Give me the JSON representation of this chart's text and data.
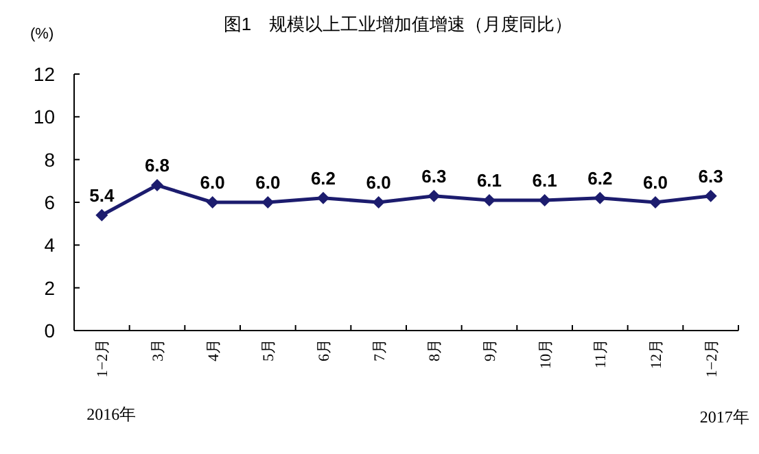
{
  "chart_data": {
    "type": "line",
    "title": "图1　规模以上工业增加值增速（月度同比）",
    "ylabel": "(%)",
    "categories": [
      "1−2月",
      "3月",
      "4月",
      "5月",
      "6月",
      "7月",
      "8月",
      "9月",
      "10月",
      "11月",
      "12月",
      "1−2月"
    ],
    "series": [
      {
        "color": "#1c1c6e",
        "values": [
          5.4,
          6.8,
          6.0,
          6.0,
          6.2,
          6.0,
          6.3,
          6.1,
          6.1,
          6.2,
          6.0,
          6.3
        ],
        "value_labels": [
          "5.4",
          "6.8",
          "6.0",
          "6.0",
          "6.2",
          "6.0",
          "6.3",
          "6.1",
          "6.1",
          "6.2",
          "6.0",
          "6.3"
        ]
      }
    ],
    "ylim": [
      0,
      12
    ],
    "yticks": [
      0,
      2,
      4,
      6,
      8,
      10,
      12
    ],
    "marker": "diamond",
    "annotations": [
      "2016年",
      "2017年"
    ]
  }
}
